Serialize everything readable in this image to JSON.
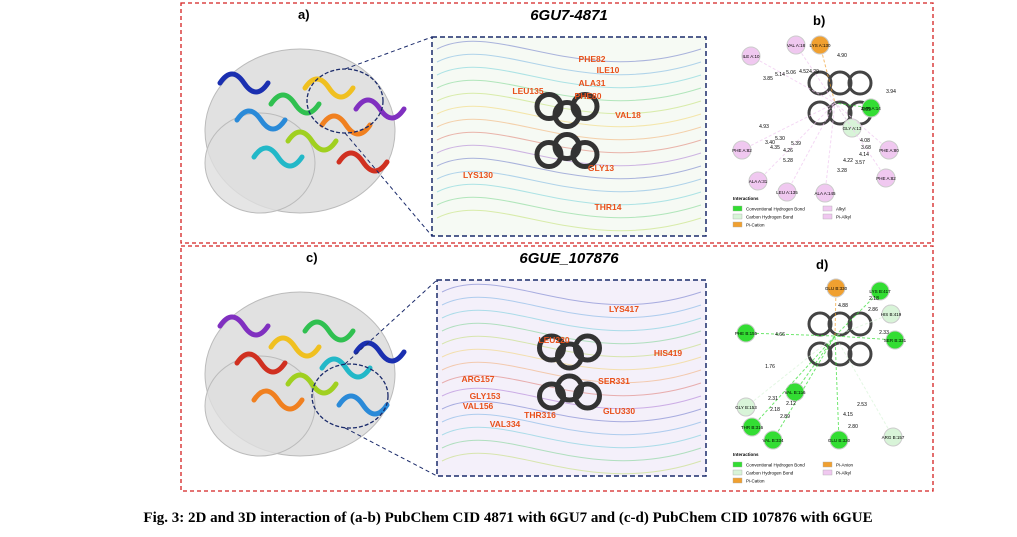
{
  "panels": [
    {
      "view3d": {
        "label": "a)",
        "title": "6GU7-4871",
        "residues": [
          "PHE82",
          "ILE10",
          "LEU135",
          "ALA31",
          "PHE80",
          "VAL18",
          "LYS130",
          "GLY13",
          "THR14"
        ]
      },
      "view2d": {
        "label": "b)",
        "residues": [
          {
            "name": "ILE A:10",
            "color": "#f0c8f0"
          },
          {
            "name": "VAL A:18",
            "color": "#f0c8f0"
          },
          {
            "name": "LYS A:130",
            "color": "#f0a030"
          },
          {
            "name": "THR A:14",
            "color": "#33dd33"
          },
          {
            "name": "GLY A:13",
            "color": "#d8f4d8"
          },
          {
            "name": "PHE A:82",
            "color": "#f0c8f0"
          },
          {
            "name": "PHE A:80",
            "color": "#f0c8f0"
          },
          {
            "name": "ALA A:31",
            "color": "#f0c8f0"
          },
          {
            "name": "LEU A:135",
            "color": "#f0c8f0"
          },
          {
            "name": "ALA A:145",
            "color": "#f0c8f0"
          },
          {
            "name": "PHE A:82",
            "color": "#f0c8f0"
          }
        ],
        "distances": [
          "4.90",
          "3.85",
          "5.14",
          "5.06",
          "4.52",
          "4.29",
          "3.94",
          "4.09",
          "4.93",
          "3.40",
          "5.30",
          "4.35",
          "5.39",
          "4.26",
          "4.08",
          "3.68",
          "4.14",
          "5.28",
          "4.22",
          "3.57",
          "3.28"
        ],
        "legend_title": "Interactions",
        "legend": [
          {
            "label": "Conventional Hydrogen Bond",
            "color": "#33dd33"
          },
          {
            "label": "Carbon Hydrogen Bond",
            "color": "#d8f4d8"
          },
          {
            "label": "Pi-Cation",
            "color": "#f0a030"
          },
          {
            "label": "Alkyl",
            "color": "#f0c8f0"
          },
          {
            "label": "Pi-Alkyl",
            "color": "#f0c8f0"
          }
        ]
      }
    },
    {
      "view3d": {
        "label": "c)",
        "title": "6GUE_107876",
        "residues": [
          "LYS417",
          "LEU220",
          "HIS419",
          "ARG157",
          "GLY153",
          "SER331",
          "VAL156",
          "THR316",
          "GLU330",
          "VAL334"
        ]
      },
      "view2d": {
        "label": "d)",
        "residues": [
          {
            "name": "GLU B:330",
            "color": "#f0a030"
          },
          {
            "name": "LYS B:417",
            "color": "#33dd33"
          },
          {
            "name": "HIS B:419",
            "color": "#d8f4d8"
          },
          {
            "name": "SER B:331",
            "color": "#33dd33"
          },
          {
            "name": "PHE B:155",
            "color": "#33dd33"
          },
          {
            "name": "VAL B:156",
            "color": "#33dd33"
          },
          {
            "name": "GLY B:153",
            "color": "#d8f4d8"
          },
          {
            "name": "THR B:316",
            "color": "#33dd33"
          },
          {
            "name": "VAL B:334",
            "color": "#33dd33"
          },
          {
            "name": "GLU B:330",
            "color": "#33dd33"
          },
          {
            "name": "ARG B:157",
            "color": "#d8f4d8"
          }
        ],
        "distances": [
          "2.18",
          "4.88",
          "2.86",
          "4.66",
          "2.33",
          "1.76",
          "2.12",
          "2.31",
          "2.18",
          "2.89",
          "2.53",
          "4.15",
          "2.80"
        ],
        "legend_title": "Interactions",
        "legend": [
          {
            "label": "Conventional Hydrogen Bond",
            "color": "#33dd33"
          },
          {
            "label": "Carbon Hydrogen Bond",
            "color": "#d8f4d8"
          },
          {
            "label": "Pi-Cation",
            "color": "#f0a030"
          },
          {
            "label": "Pi-Anion",
            "color": "#f0a030"
          },
          {
            "label": "Pi-Alkyl",
            "color": "#f0c8f0"
          }
        ]
      }
    }
  ],
  "caption": "Fig. 3: 2D and 3D interaction of (a-b) PubChem CID 4871 with 6GU7 and (c-d) PubChem CID 107876 with 6GUE"
}
